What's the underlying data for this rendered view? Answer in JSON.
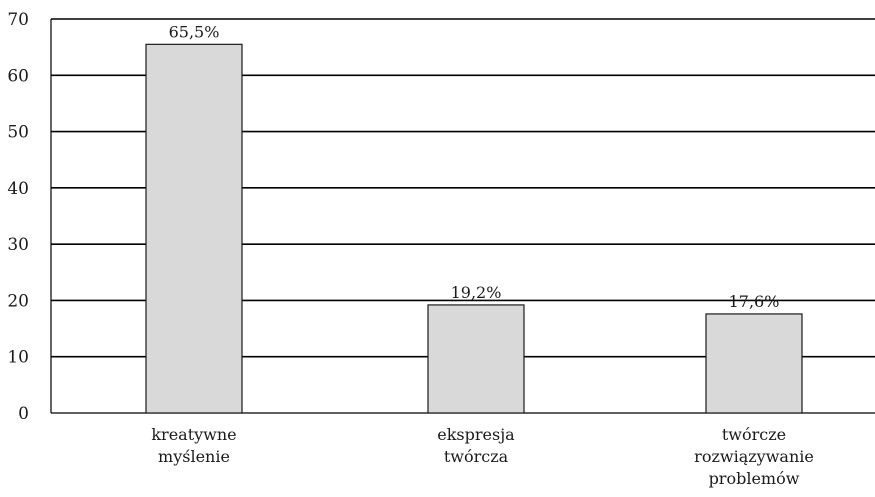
{
  "chart_data": {
    "type": "bar",
    "categories": [
      "kreatywne myślenie",
      "ekspresja twórcza",
      "twórcze rozwiązywanie problemów"
    ],
    "category_lines": [
      [
        "kreatywne",
        "myślenie"
      ],
      [
        "ekspresja",
        "twórcza"
      ],
      [
        "twórcze",
        "rozwiązywanie",
        "problemów"
      ]
    ],
    "values": [
      65.5,
      19.2,
      17.6
    ],
    "data_labels": [
      "65,5%",
      "19,2%",
      "17,6%"
    ],
    "title": "",
    "xlabel": "",
    "ylabel": "",
    "ylim": [
      0,
      70
    ],
    "y_ticks": [
      0,
      10,
      20,
      30,
      40,
      50,
      60,
      70
    ],
    "grid": true,
    "legend": "none",
    "colors": {
      "bar_fill": "#d9d9d9",
      "bar_stroke": "#1a1a1a",
      "grid": "#000000",
      "text": "#1a1a1a"
    }
  }
}
